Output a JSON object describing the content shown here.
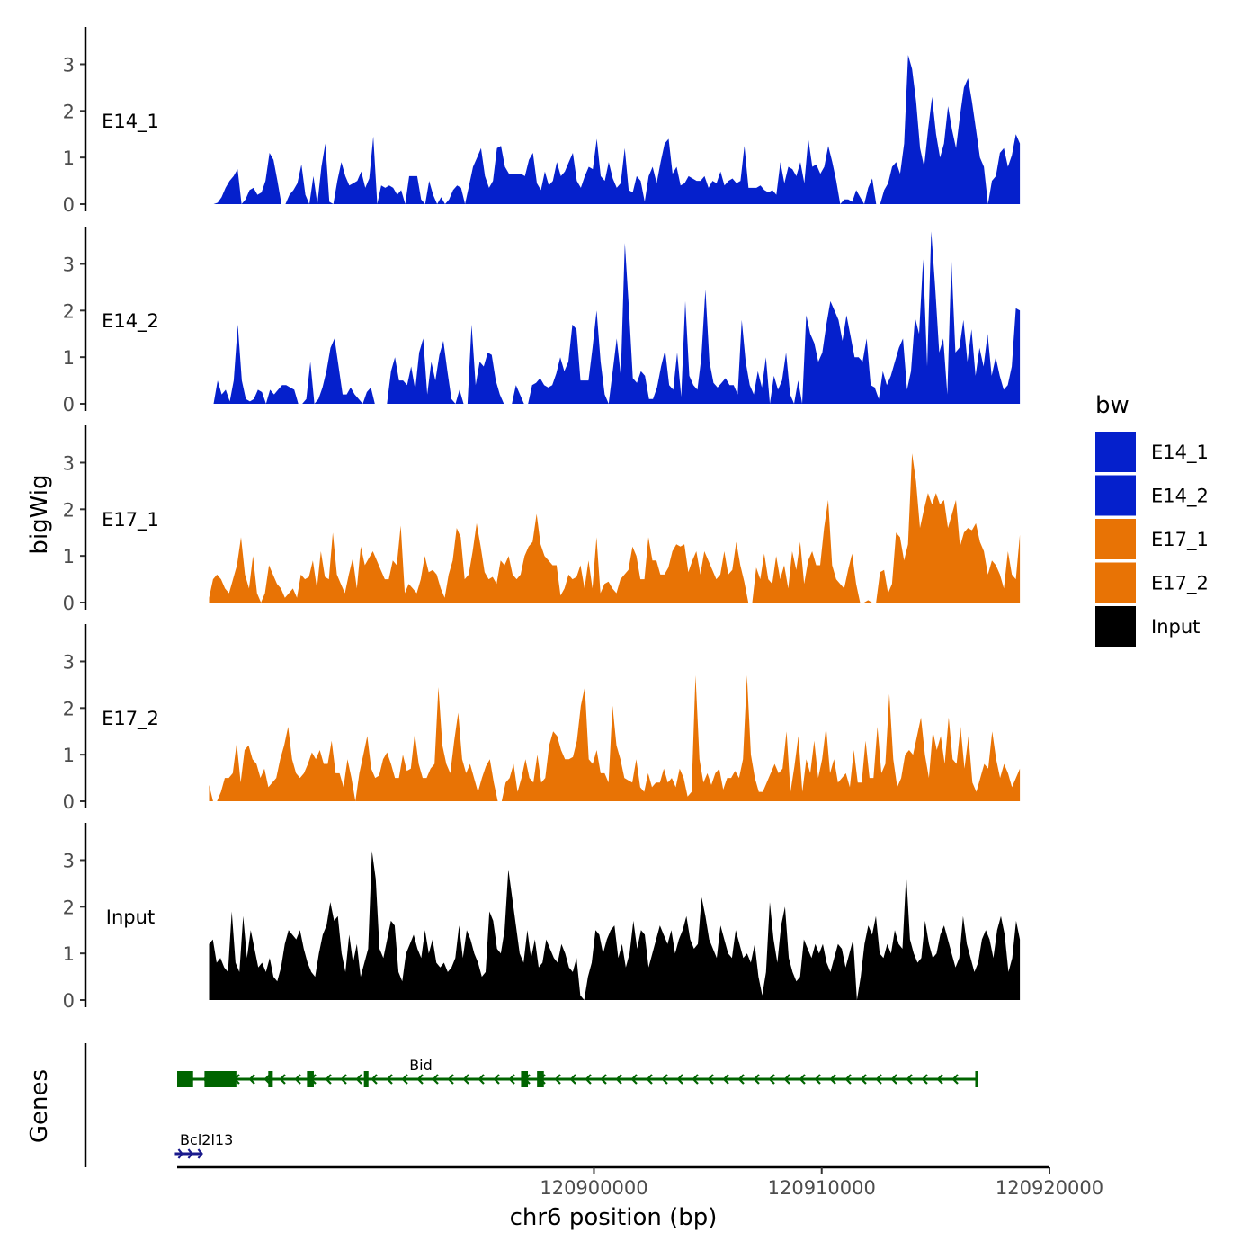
{
  "chart_data": {
    "type": "area",
    "title": "",
    "xlabel": "chr6 position (bp)",
    "ylabel": "bigWig",
    "genes_label": "Genes",
    "xlim": [
      120881700,
      120920000
    ],
    "x_ticks": [
      120900000,
      120910000,
      120920000
    ],
    "x_tick_labels": [
      "120900000",
      "120910000",
      "120920000"
    ],
    "ylim": [
      0,
      3.8
    ],
    "y_ticks": [
      0,
      1,
      2,
      3
    ],
    "y_tick_labels": [
      "0",
      "1",
      "2",
      "3"
    ],
    "legend": {
      "title": "bw",
      "position": "right",
      "entries": [
        {
          "label": "E14_1",
          "color": "#0520CC"
        },
        {
          "label": "E14_2",
          "color": "#0520CC"
        },
        {
          "label": "E17_1",
          "color": "#E87305"
        },
        {
          "label": "E17_2",
          "color": "#E87305"
        },
        {
          "label": "Input",
          "color": "#000000"
        }
      ]
    },
    "tracks": [
      {
        "name": "E14_1",
        "color": "#0520CC",
        "x_start": 120883300,
        "x_end": 120918700,
        "values": [
          0,
          0.03,
          0.15,
          0.35,
          0.5,
          0.6,
          0.75,
          0,
          0.1,
          0.3,
          0.35,
          0.2,
          0.25,
          0.5,
          1.1,
          0.95,
          0.5,
          0,
          0,
          0.2,
          0.3,
          0.45,
          0.85,
          0.2,
          0,
          0.6,
          0,
          0.8,
          1.3,
          0.05,
          0,
          0.5,
          0.9,
          0.6,
          0.4,
          0.45,
          0.5,
          0.7,
          0.35,
          0.55,
          1.45,
          0,
          0.4,
          0.35,
          0.4,
          0.35,
          0.2,
          0.3,
          0,
          0.6,
          0.6,
          0.6,
          0.1,
          0,
          0.5,
          0.2,
          0,
          0.15,
          0,
          0.1,
          0.3,
          0.4,
          0.35,
          0,
          0.4,
          0.8,
          1,
          1.2,
          0.6,
          0.35,
          0.5,
          1.2,
          1.25,
          0.8,
          0.65,
          0.65,
          0.65,
          0.65,
          0.6,
          0.95,
          1.1,
          0.45,
          0.3,
          0.7,
          0.4,
          0.5,
          0.9,
          0.6,
          0.7,
          0.9,
          1.1,
          0.5,
          0.35,
          0.6,
          0.8,
          0.75,
          1.4,
          0.6,
          0.5,
          0.9,
          0.55,
          0.35,
          0.45,
          1.2,
          0.3,
          0.25,
          0.6,
          0.5,
          0.05,
          0.6,
          0.8,
          0.45,
          0.9,
          1.3,
          1.4,
          0.65,
          0.8,
          0.4,
          0.45,
          0.6,
          0.55,
          0.5,
          0.5,
          0.6,
          0.35,
          0.5,
          0.45,
          0.7,
          0.4,
          0.5,
          0.55,
          0.45,
          0.5,
          1.25,
          0.35,
          0.35,
          0.35,
          0.4,
          0.3,
          0.25,
          0.3,
          0.2,
          0.9,
          0.45,
          0.8,
          0.75,
          0.6,
          0.9,
          0.45,
          1.4,
          0.8,
          0.85,
          0.65,
          0.8,
          1.25,
          0.9,
          0.5,
          0,
          0.1,
          0.1,
          0.05,
          0.3,
          0.15,
          0,
          0.35,
          0.55,
          0,
          0,
          0.3,
          0.45,
          0.8,
          0.9,
          0.65,
          1.3,
          3.2,
          2.9,
          2.2,
          1.2,
          0.8,
          1.6,
          2.3,
          1.5,
          1,
          1.3,
          2.1,
          1.6,
          1.2,
          1.9,
          2.5,
          2.7,
          2.2,
          1.6,
          1,
          0.8,
          0,
          0.5,
          0.6,
          1.1,
          1.2,
          0.8,
          1.05,
          1.5,
          1.3
        ]
      },
      {
        "name": "E14_2",
        "color": "#0520CC",
        "x_start": 120883300,
        "x_end": 120918700,
        "values": [
          0,
          0.5,
          0.2,
          0.3,
          0.05,
          0.5,
          1.7,
          0.5,
          0.1,
          0.05,
          0.1,
          0.3,
          0.25,
          0,
          0.3,
          0.2,
          0.3,
          0.4,
          0.4,
          0.35,
          0.3,
          0,
          0,
          0.1,
          0.9,
          0,
          0.1,
          0.35,
          0.7,
          1.2,
          1.4,
          0.8,
          0.2,
          0.2,
          0.35,
          0.2,
          0.1,
          0,
          0.25,
          0.35,
          0,
          0,
          0,
          0,
          0.7,
          1,
          0.5,
          0.5,
          0.4,
          0.8,
          0.3,
          1.1,
          1.4,
          0.2,
          0.9,
          0.5,
          1.05,
          1.35,
          0.7,
          0.1,
          0,
          0.3,
          0,
          0,
          1.7,
          0.4,
          0.9,
          0.8,
          1.1,
          1.05,
          0.5,
          0.2,
          0,
          0,
          0,
          0.4,
          0.2,
          0,
          0,
          0.4,
          0.45,
          0.55,
          0.4,
          0.35,
          0.4,
          0.65,
          1,
          0.7,
          0.9,
          1.7,
          1.6,
          0.5,
          0.5,
          0.5,
          1.2,
          2,
          0.9,
          0.2,
          0,
          0.7,
          1.4,
          0.6,
          3.45,
          2.1,
          0.55,
          0.45,
          0.7,
          0.6,
          0.1,
          0.1,
          0.35,
          0.8,
          1.15,
          0.4,
          0.3,
          1.1,
          0.15,
          2.2,
          0.6,
          0.4,
          0.3,
          1,
          2.45,
          0.9,
          0.45,
          0.35,
          0.45,
          0.55,
          0.4,
          0.4,
          0.2,
          1.8,
          0.9,
          0.4,
          0.2,
          0.7,
          0.35,
          1,
          0,
          0.6,
          0.3,
          0.5,
          1.1,
          0.2,
          0,
          0.5,
          0,
          1.9,
          1.5,
          1.3,
          0.9,
          1.1,
          1.7,
          2.2,
          2,
          1.8,
          1.35,
          1.9,
          1.45,
          1,
          1,
          0.9,
          1.4,
          0.4,
          0.35,
          0.1,
          0.7,
          0.4,
          0.6,
          0.9,
          1.2,
          1.4,
          0.3,
          0.7,
          1.85,
          1.5,
          3.1,
          0.8,
          3.7,
          2.5,
          1.1,
          1.4,
          0.2,
          3.1,
          1.1,
          1.2,
          1.8,
          0.9,
          1.6,
          0.6,
          1.2,
          0.8,
          1.5,
          0.6,
          1,
          0.6,
          0.3,
          0.4,
          0.8,
          2.05,
          2
        ]
      },
      {
        "name": "E17_1",
        "color": "#E87305",
        "x_start": 120883100,
        "x_end": 120918700,
        "values": [
          0.1,
          0.5,
          0.6,
          0.5,
          0.3,
          0.2,
          0.5,
          0.8,
          1.4,
          0.6,
          0.3,
          1,
          0.2,
          0,
          0.2,
          0.8,
          0.6,
          0.4,
          0.3,
          0.1,
          0.2,
          0.3,
          0.1,
          0.6,
          0.5,
          0.55,
          0.9,
          0.3,
          1.1,
          0.55,
          0.5,
          1.5,
          0.6,
          0.4,
          0.2,
          0.6,
          0.95,
          0.3,
          1.2,
          0.8,
          0.95,
          1.1,
          0.9,
          0.7,
          0.5,
          0.5,
          0.9,
          0.8,
          1.65,
          0.2,
          0.4,
          0.3,
          0.2,
          0.5,
          1,
          0.65,
          0.7,
          0.6,
          0.3,
          0.1,
          0.6,
          0.9,
          1.6,
          1.4,
          0.5,
          0.6,
          1.1,
          1.7,
          1.2,
          0.65,
          0.5,
          0.55,
          0.4,
          0.9,
          0.8,
          1,
          0.6,
          0.5,
          0.6,
          1,
          1.2,
          1.3,
          1.9,
          1.25,
          1,
          0.9,
          0.8,
          0.8,
          0.15,
          0.3,
          0.6,
          0.5,
          0.55,
          0.8,
          0.3,
          0.9,
          0.3,
          1.4,
          0.2,
          0.4,
          0.45,
          0.3,
          0.2,
          0.5,
          0.6,
          0.7,
          1.2,
          1,
          0.5,
          0.5,
          1.4,
          0.9,
          0.9,
          0.6,
          0.6,
          0.75,
          1.1,
          1.25,
          1.2,
          1.25,
          0.65,
          0.9,
          1.1,
          0.6,
          1.1,
          0.9,
          0.7,
          0.5,
          0.6,
          1.1,
          0.6,
          0.7,
          1.3,
          0.8,
          0.45,
          0,
          0,
          0.75,
          0.5,
          1.05,
          0.5,
          0.4,
          1,
          0.5,
          0.8,
          0.3,
          1.1,
          0.7,
          1.3,
          0.4,
          0.9,
          1.1,
          0.8,
          0.8,
          1.6,
          2.2,
          0.8,
          0.5,
          0.4,
          0.3,
          0.7,
          1.05,
          0.4,
          0,
          0,
          0.05,
          0,
          0,
          0.65,
          0.7,
          0.2,
          0.4,
          1.5,
          1.4,
          0.9,
          1.25,
          3.2,
          2.6,
          1.6,
          2,
          2.35,
          2.1,
          2.35,
          2.1,
          2.2,
          1.6,
          1.9,
          2.2,
          1.2,
          1.5,
          1.6,
          1.55,
          1.7,
          1.3,
          1.1,
          0.6,
          0.9,
          0.8,
          0.6,
          0.3,
          1.1,
          0.6,
          0.5,
          1.45
        ]
      },
      {
        "name": "E17_2",
        "color": "#E87305",
        "x_start": 120883100,
        "x_end": 120918700,
        "values": [
          0.35,
          0,
          0,
          0.2,
          0.5,
          0.5,
          0.6,
          1.25,
          0.4,
          1.1,
          1.2,
          0.9,
          0.8,
          0.5,
          0.7,
          0.3,
          0.4,
          0.5,
          0.9,
          1.2,
          1.6,
          0.9,
          0.6,
          0.5,
          0.6,
          0.8,
          1.05,
          0.9,
          1.1,
          0.8,
          0.8,
          1.3,
          0.6,
          0.6,
          0.3,
          0.9,
          0.5,
          0,
          0.6,
          1,
          1.4,
          0.7,
          0.5,
          0.55,
          0.9,
          1.05,
          0.8,
          0.5,
          0.5,
          1,
          0.65,
          0.7,
          1.45,
          0.8,
          0.5,
          0.5,
          0.7,
          0.8,
          2.45,
          1.2,
          0.8,
          0.6,
          1.3,
          1.9,
          0.9,
          0.6,
          0.8,
          0.5,
          0.2,
          0.5,
          0.75,
          0.9,
          0.4,
          0,
          0,
          0.4,
          0.5,
          0.8,
          0.2,
          0.5,
          0.9,
          0.5,
          0.4,
          1,
          0.4,
          0.5,
          1.2,
          1.5,
          1.4,
          1.1,
          0.9,
          0.9,
          0.95,
          1.3,
          2.05,
          2.45,
          0.9,
          0.8,
          1.1,
          0.6,
          0.6,
          0.4,
          2.05,
          1.2,
          0.9,
          0.5,
          0.45,
          0.4,
          0.9,
          0.3,
          0.2,
          0.6,
          0.3,
          0.4,
          0.4,
          0.7,
          0.4,
          0.5,
          0.3,
          0.7,
          0.5,
          0.1,
          0.2,
          2.7,
          0.9,
          0.4,
          0.6,
          0.35,
          0.6,
          0.7,
          0.25,
          0.5,
          0.5,
          0.65,
          0.5,
          0.9,
          2.7,
          1,
          0.5,
          0.2,
          0.2,
          0.4,
          0.6,
          0.8,
          0.6,
          0.7,
          1.5,
          0.2,
          0.75,
          1.4,
          0.2,
          0.9,
          0.6,
          1.3,
          0.5,
          0.9,
          1.6,
          0.6,
          0.9,
          0.4,
          0.5,
          0.6,
          0.3,
          1.1,
          0.4,
          0.4,
          1.3,
          0.5,
          0.5,
          1.6,
          0.6,
          0.8,
          2.3,
          0.9,
          0.3,
          0.5,
          1,
          1.1,
          1,
          1.4,
          1.8,
          1,
          0.5,
          1.5,
          1.1,
          1.4,
          0.8,
          1.8,
          0.9,
          0.8,
          1.6,
          0.7,
          1.4,
          0.4,
          0.2,
          0.5,
          0.8,
          0.7,
          1.5,
          0.9,
          0.5,
          0.8,
          0.6,
          0.3,
          0.5,
          0.7
        ]
      },
      {
        "name": "Input",
        "color": "#000000",
        "x_start": 120883100,
        "x_end": 120918700,
        "values": [
          1.2,
          1.3,
          0.8,
          0.9,
          0.7,
          0.6,
          1.9,
          0.8,
          0.6,
          1.8,
          0.9,
          1.5,
          1.1,
          0.7,
          0.8,
          0.6,
          0.9,
          0.5,
          0.4,
          0.7,
          1.2,
          1.5,
          1.4,
          1.3,
          1.5,
          1.1,
          0.8,
          0.6,
          0.5,
          1,
          1.4,
          1.6,
          2.1,
          1.7,
          1.8,
          1,
          0.6,
          1.4,
          0.8,
          1.2,
          0.5,
          0.8,
          1.1,
          3.2,
          2.6,
          1.1,
          0.9,
          1.3,
          1.7,
          1.6,
          0.6,
          0.4,
          1,
          1.2,
          1.4,
          1.1,
          0.9,
          1.5,
          1.0,
          1.3,
          0.8,
          0.7,
          0.8,
          0.6,
          0.7,
          0.9,
          1.6,
          0.9,
          1.5,
          1.3,
          1,
          0.8,
          0.5,
          0.6,
          1.9,
          1.7,
          1.1,
          1.0,
          1.5,
          2.8,
          2.2,
          1.6,
          1.0,
          0.8,
          1.5,
          0.9,
          1.3,
          0.7,
          0.8,
          1.3,
          1.1,
          0.9,
          0.8,
          1.2,
          1.0,
          0.7,
          0.6,
          0.9,
          0.1,
          0,
          0.5,
          0.8,
          1.5,
          1.4,
          1.0,
          1.3,
          1.5,
          1.6,
          0.9,
          1.2,
          0.7,
          1.0,
          1.7,
          1.1,
          1.5,
          1.4,
          0.7,
          1.0,
          1.3,
          1.6,
          1.4,
          1.2,
          1.5,
          1.0,
          1.3,
          1.5,
          1.8,
          1.3,
          1.1,
          1.2,
          2.2,
          1.8,
          1.3,
          1.1,
          0.9,
          1.6,
          1.3,
          1.0,
          0.9,
          1.5,
          1.2,
          0.9,
          1.0,
          0.8,
          1.2,
          0.5,
          0.1,
          0.6,
          2.1,
          1.3,
          0.8,
          1.6,
          2,
          0.9,
          0.6,
          0.4,
          0.5,
          1.3,
          1.1,
          0.9,
          1.2,
          1.0,
          1.2,
          0.8,
          0.6,
          0.9,
          1.2,
          1.1,
          0.7,
          1.0,
          1.3,
          0,
          0.5,
          1.2,
          1.6,
          1.4,
          1.8,
          1.0,
          0.9,
          1.2,
          1.0,
          1.5,
          1.2,
          1.1,
          2.7,
          1.3,
          1.0,
          0.8,
          0.9,
          1.7,
          1.2,
          0.9,
          1.0,
          1.4,
          1.6,
          1.3,
          1.0,
          0.7,
          0.9,
          1.8,
          1.2,
          0.9,
          0.6,
          0.8,
          1.3,
          1.5,
          1.3,
          0.9,
          1.5,
          1.8,
          1.4,
          0.6,
          0.9,
          1.7,
          1.3
        ]
      }
    ],
    "gene_track": {
      "genes": [
        {
          "name": "Bid",
          "color": "#006400",
          "strand": "-",
          "start": 120881700,
          "end": 120916800,
          "exons": [
            [
              120881700,
              120882400
            ],
            [
              120882900,
              120884300
            ],
            [
              120885700,
              120885900
            ],
            [
              120887400,
              120887700
            ],
            [
              120889900,
              120890100
            ],
            [
              120896800,
              120897100
            ],
            [
              120897500,
              120897800
            ]
          ],
          "label_pos": 120892400
        },
        {
          "name": "Bcl2l13",
          "color": "#1A1A8C",
          "strand": "+",
          "start": 120881600,
          "end": 120882800,
          "exons": [],
          "label_pos": 120882200
        }
      ]
    }
  }
}
